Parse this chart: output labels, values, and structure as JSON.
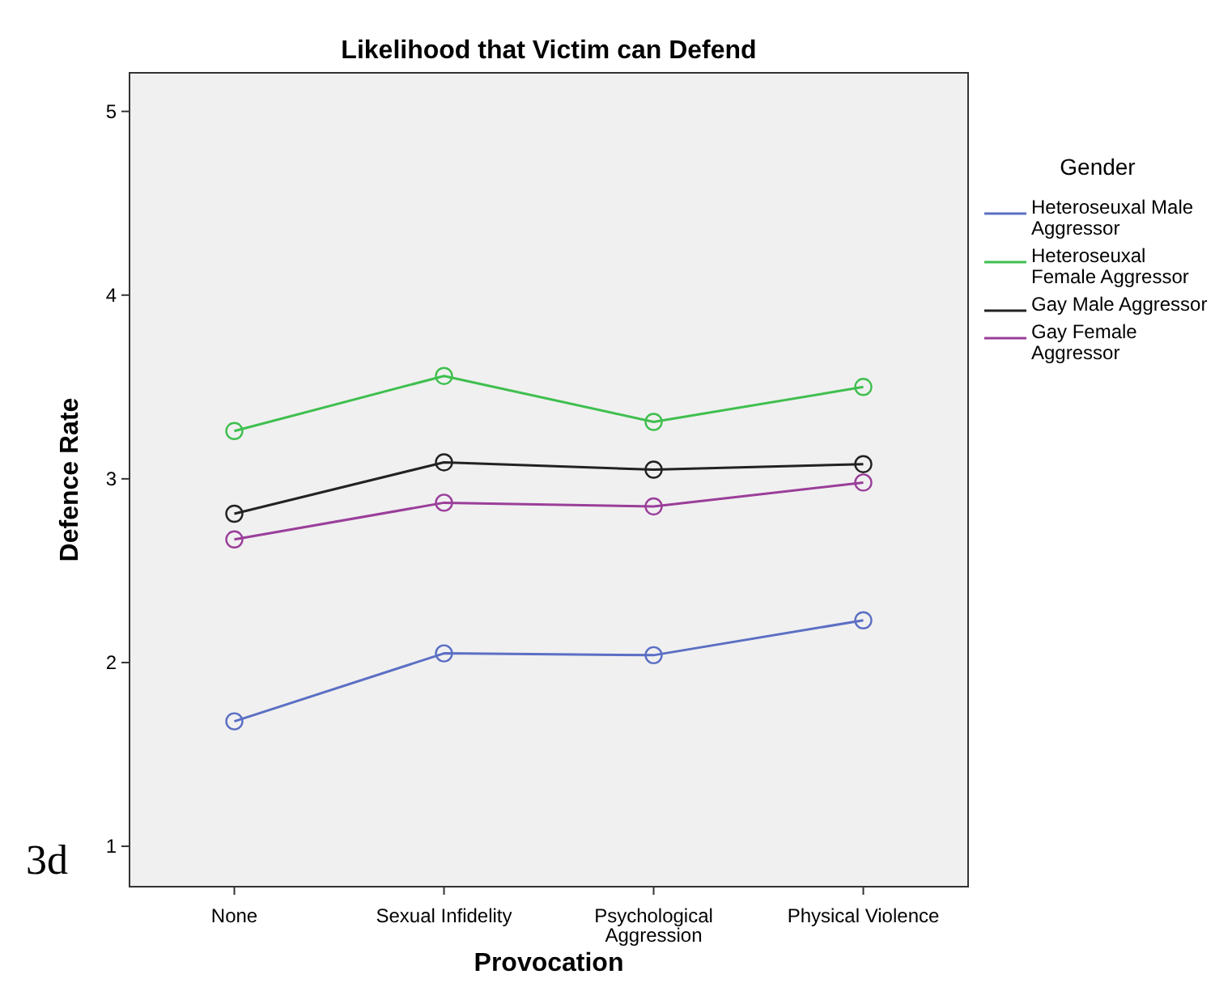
{
  "chart_data": {
    "type": "line",
    "title": "Likelihood that Victim can Defend",
    "xlabel": "Provocation",
    "ylabel": "Defence Rate",
    "legend_title": "Gender",
    "categories": [
      "None",
      "Sexual Infidelity",
      "Psychological Aggression",
      "Physical Violence"
    ],
    "series": [
      {
        "name": "Heteroseuxal Male Aggressor",
        "color": "#5b6fc4",
        "values": [
          1.68,
          2.05,
          2.04,
          2.23
        ]
      },
      {
        "name": "Heteroseuxal Female Aggressor",
        "color": "#3fbf4f",
        "values": [
          3.26,
          3.56,
          3.31,
          3.5
        ]
      },
      {
        "name": "Gay Male Aggressor",
        "color": "#222222",
        "values": [
          2.81,
          3.09,
          3.05,
          3.08
        ]
      },
      {
        "name": "Gay Female Aggressor",
        "color": "#9a3e9a",
        "values": [
          2.67,
          2.87,
          2.85,
          2.98
        ]
      }
    ],
    "ylim": [
      0.78,
      5.21
    ],
    "yticks": [
      1,
      2,
      3,
      4,
      5
    ],
    "grid": false,
    "legend": "right",
    "marker": "circle",
    "line_style": "solid",
    "annotations": [
      "3d"
    ]
  }
}
